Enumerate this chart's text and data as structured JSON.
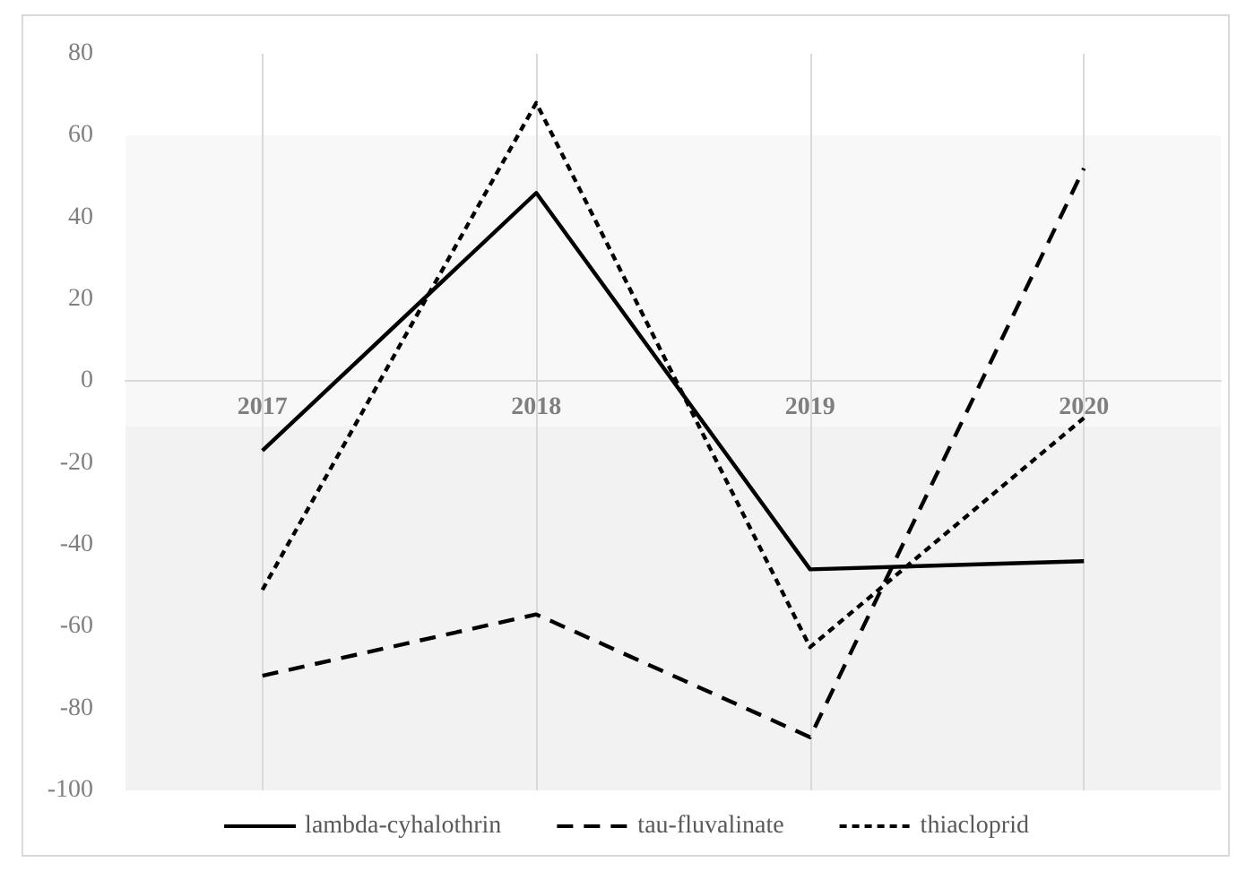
{
  "chart_data": {
    "type": "line",
    "categories": [
      "2017",
      "2018",
      "2019",
      "2020"
    ],
    "series": [
      {
        "name": "lambda-cyhalothrin",
        "color": "#000000",
        "line_style": "solid",
        "values": [
          -17,
          46,
          -46,
          -44
        ]
      },
      {
        "name": "tau-fluvalinate",
        "color": "#000000",
        "line_style": "dashed",
        "values": [
          -72,
          -57,
          -87,
          52
        ]
      },
      {
        "name": "thiacloprid",
        "color": "#000000",
        "line_style": "dotted",
        "values": [
          -51,
          68,
          -65,
          -9
        ]
      }
    ],
    "ylim": [
      -100,
      80
    ],
    "yticks": [
      -100,
      -80,
      -60,
      -40,
      -20,
      0,
      20,
      40,
      60,
      80
    ],
    "bands": [
      {
        "axis": "y",
        "from": -11,
        "to": 60,
        "color": "#f8f8f8"
      },
      {
        "axis": "y",
        "from": -100,
        "to": -11,
        "color": "#f2f2f2"
      }
    ],
    "grid": "x",
    "legend": "bottom",
    "marker": "none"
  }
}
